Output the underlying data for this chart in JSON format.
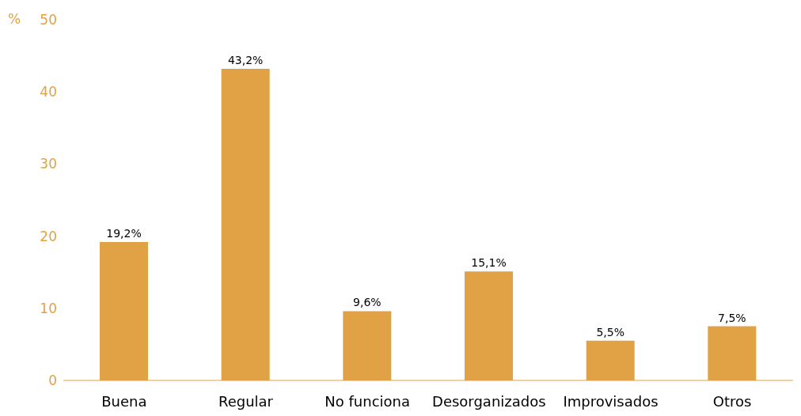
{
  "chart_data": {
    "type": "bar",
    "ylabel": "%",
    "categories": [
      "Buena",
      "Regular",
      "No funciona",
      "Desorganizados",
      "Improvisados",
      "Otros"
    ],
    "values": [
      19.2,
      43.2,
      9.6,
      15.1,
      5.5,
      7.5
    ],
    "value_labels": [
      "19,2%",
      "43,2%",
      "9,6%",
      "15,1%",
      "5,5%",
      "7,5%"
    ],
    "color": "#e0a244",
    "ylim": [
      0,
      50
    ],
    "yticks": [
      0,
      10,
      20,
      30,
      40,
      50
    ],
    "grid": false,
    "legend": false
  }
}
